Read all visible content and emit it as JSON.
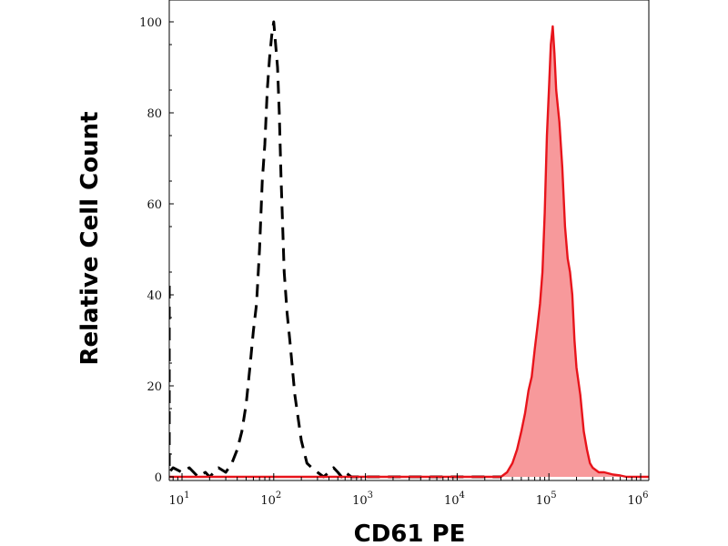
{
  "chart_data": {
    "type": "area",
    "title": "",
    "xlabel": "CD61 PE",
    "ylabel": "Relative Cell Count",
    "x_scale": "log",
    "xlim": [
      6,
      1300000
    ],
    "ylim": [
      0,
      105
    ],
    "grid": false,
    "legend": "none",
    "yticks": [
      0,
      20,
      40,
      60,
      80,
      100
    ],
    "ytick_labels": [
      "0",
      "20",
      "40",
      "60",
      "80",
      "100"
    ],
    "xtick_labels": [
      {
        "base": "10",
        "exp": "1"
      },
      {
        "base": "10",
        "exp": "2"
      },
      {
        "base": "10",
        "exp": "3"
      },
      {
        "base": "10",
        "exp": "4"
      },
      {
        "base": "10",
        "exp": "5"
      },
      {
        "base": "10",
        "exp": "6"
      }
    ],
    "series": [
      {
        "style": "dashed",
        "color": "#000000",
        "fill": "none",
        "x": [
          6,
          7,
          8,
          10,
          12,
          15,
          18,
          20,
          25,
          30,
          35,
          40,
          45,
          50,
          55,
          60,
          65,
          70,
          75,
          80,
          85,
          90,
          95,
          100,
          105,
          110,
          115,
          120,
          130,
          140,
          150,
          170,
          200,
          230,
          260,
          300,
          350,
          400,
          450,
          500,
          550,
          600,
          700,
          1000,
          10000,
          30000
        ],
        "y": [
          42,
          1,
          2,
          1,
          2,
          0,
          1,
          0,
          2,
          1,
          3,
          6,
          10,
          16,
          24,
          32,
          38,
          50,
          65,
          73,
          85,
          92,
          97,
          100,
          95,
          90,
          80,
          66,
          45,
          36,
          30,
          18,
          8,
          3,
          2,
          1,
          0,
          1,
          2,
          1,
          0,
          1,
          0,
          0,
          0,
          0
        ]
      },
      {
        "style": "solid",
        "color": "#e8141b",
        "fill": "#f7999b",
        "x": [
          6,
          1000,
          10000,
          30000,
          35000,
          40000,
          45000,
          50000,
          55000,
          60000,
          65000,
          70000,
          75000,
          80000,
          85000,
          90000,
          95000,
          100000,
          105000,
          110000,
          115000,
          120000,
          130000,
          140000,
          150000,
          160000,
          170000,
          180000,
          190000,
          200000,
          220000,
          240000,
          260000,
          280000,
          300000,
          350000,
          400000,
          500000,
          600000,
          700000,
          1000000,
          1300000
        ],
        "y": [
          0,
          0,
          0,
          0,
          1,
          3,
          6,
          10,
          14,
          19,
          22,
          28,
          33,
          38,
          45,
          58,
          75,
          85,
          95,
          99,
          93,
          85,
          78,
          68,
          55,
          48,
          45,
          40,
          30,
          24,
          18,
          10,
          6,
          3,
          2,
          1,
          1,
          0.5,
          0.3,
          0,
          0,
          0
        ]
      }
    ]
  }
}
